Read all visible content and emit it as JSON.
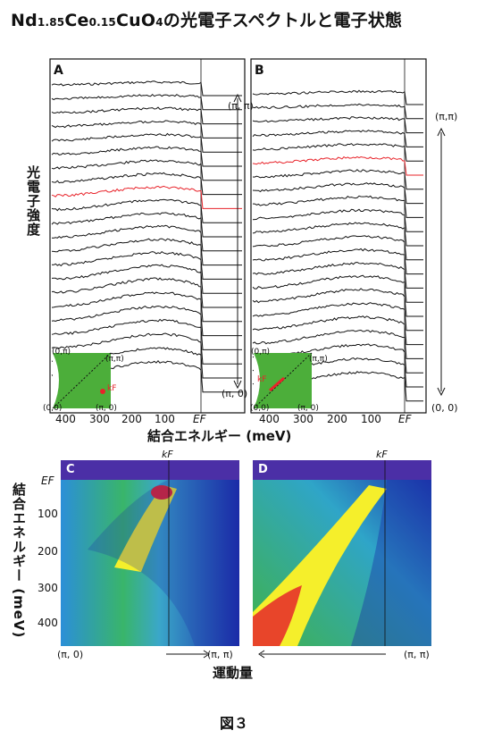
{
  "title": {
    "main": "Nd",
    "sub1": "1.85",
    "ce": "Ce",
    "sub2": "0.15",
    "cuo": "CuO",
    "sub3": "4",
    "rest": "の光電子スペクトルと電子状態"
  },
  "labels": {
    "photo_intensity": "光電子強度",
    "binding_energy_x": "結合エネルギー (meV)",
    "binding_energy_y": "結合エネルギー (meV)",
    "momentum": "運動量",
    "figure_caption": "図３"
  },
  "panels": {
    "a": {
      "letter": "A",
      "pi_pi": "(π, π)",
      "zero": "(π, 0)",
      "inset_top_left": "(0,π)",
      "inset_top_right": "(π,π)",
      "inset_bot_left": "(0,0)",
      "inset_bot_right": "(π, 0)",
      "kf": "kF"
    },
    "b": {
      "letter": "B",
      "pi_pi": "(π,π)",
      "zero": "(0, 0)",
      "inset_top_left": "(0,π)",
      "inset_top_right": "(π,π)",
      "inset_bot_left": "(0,0)",
      "inset_bot_right": "(π, 0)",
      "kf": "kF"
    },
    "c": {
      "letter": "C",
      "kf": "kF",
      "left": "(π, 0)",
      "right": "(π, π)"
    },
    "d": {
      "letter": "D",
      "kf": "kF",
      "right": "(π, π)"
    }
  },
  "x_ticks_top": [
    "400",
    "300",
    "200",
    "100",
    "EF"
  ],
  "y_ticks_bottom": [
    "EF",
    "100",
    "200",
    "300",
    "400"
  ],
  "colors": {
    "highlight": "#e8232a",
    "marker": "#3a3ab0",
    "inset_green": "#4cae3a"
  }
}
